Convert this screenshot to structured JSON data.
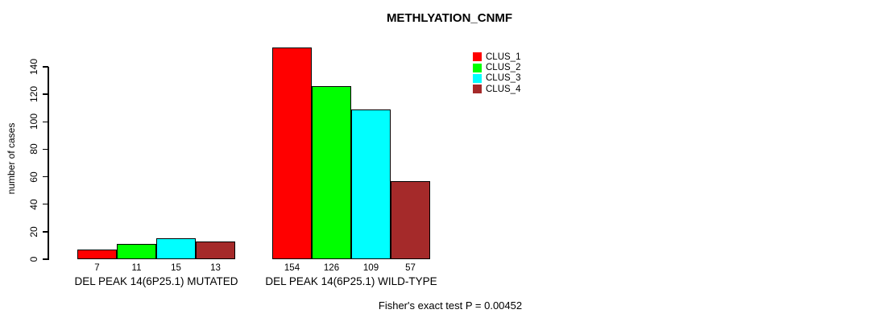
{
  "title": "METHLYATION_CNMF",
  "footnote": "Fisher's exact test P = 0.00452",
  "colors": {
    "clus_1": "#FF0000",
    "clus_2": "#00FF00",
    "clus_3": "#00FFFF",
    "clus_4": "#A52A2A",
    "axis": "#000000",
    "background": "#FFFFFF"
  },
  "chart_data": {
    "type": "bar",
    "title": "METHLYATION_CNMF",
    "xlabel": "",
    "ylabel": "number of cases",
    "ylim": [
      0,
      154
    ],
    "yticks": [
      0,
      20,
      40,
      60,
      80,
      100,
      120,
      140
    ],
    "grid": false,
    "legend_position": "top-right",
    "categories": [
      "DEL PEAK 14(6P25.1) MUTATED",
      "DEL PEAK 14(6P25.1) WILD-TYPE"
    ],
    "series": [
      {
        "name": "CLUS_1",
        "color": "#FF0000",
        "values": [
          7,
          154
        ]
      },
      {
        "name": "CLUS_2",
        "color": "#00FF00",
        "values": [
          11,
          126
        ]
      },
      {
        "name": "CLUS_3",
        "color": "#00FFFF",
        "values": [
          15,
          109
        ]
      },
      {
        "name": "CLUS_4",
        "color": "#A52A2A",
        "values": [
          13,
          57
        ]
      }
    ],
    "bar_value_labels": [
      [
        7,
        11,
        15,
        13
      ],
      [
        154,
        126,
        109,
        57
      ]
    ],
    "annotation": "Fisher's exact test P = 0.00452"
  }
}
